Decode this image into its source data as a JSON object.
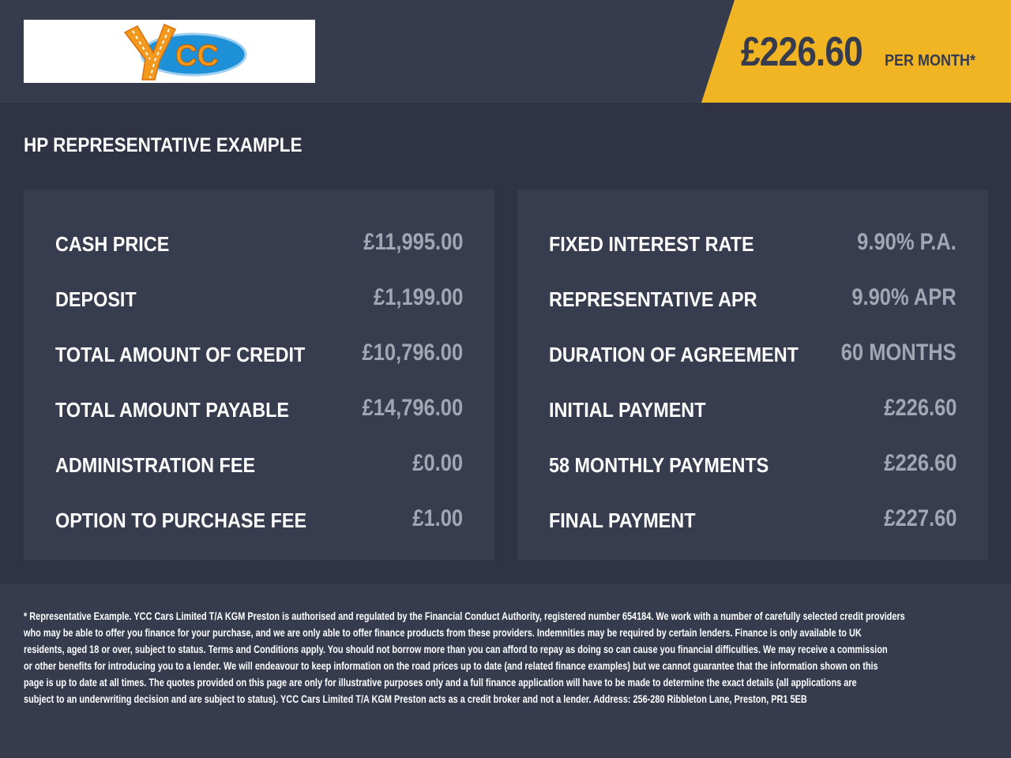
{
  "header": {
    "logo_text": "YCC",
    "monthly_price": "£226.60",
    "per_month_label": "PER MONTH*",
    "accent_color": "#f1b422"
  },
  "section_title": "HP REPRESENTATIVE EXAMPLE",
  "left_panel": [
    {
      "label": "CASH PRICE",
      "value": "£11,995.00"
    },
    {
      "label": "DEPOSIT",
      "value": "£1,199.00"
    },
    {
      "label": "TOTAL AMOUNT OF CREDIT",
      "value": "£10,796.00"
    },
    {
      "label": "TOTAL AMOUNT PAYABLE",
      "value": "£14,796.00"
    },
    {
      "label": "ADMINISTRATION FEE",
      "value": "£0.00"
    },
    {
      "label": "OPTION TO PURCHASE FEE",
      "value": "£1.00"
    }
  ],
  "right_panel": [
    {
      "label": "FIXED INTEREST RATE",
      "value": "9.90% P.A."
    },
    {
      "label": "REPRESENTATIVE APR",
      "value": "9.90% APR"
    },
    {
      "label": "DURATION OF AGREEMENT",
      "value": "60 MONTHS"
    },
    {
      "label": "INITIAL PAYMENT",
      "value": "£226.60"
    },
    {
      "label": "58 MONTHLY PAYMENTS",
      "value": "£226.60"
    },
    {
      "label": "FINAL PAYMENT",
      "value": "£227.60"
    }
  ],
  "disclaimer_lines": [
    "* Representative Example. YCC Cars Limited T/A KGM Preston  is authorised and regulated by the Financial Conduct Authority, registered number 654184. We work with a number of carefully selected credit providers",
    "who may be able to offer you finance for your purchase, and we are only able to offer finance products from these providers. Indemnities may be required by certain lenders. Finance is only available to UK",
    "residents, aged 18 or over, subject to status. Terms and Conditions apply. You should not borrow more than you can afford to repay as doing so can cause you financial difficulties. We may receive a commission",
    "or other benefits for introducing you to a lender. We will endeavour to keep information on the road prices up to date (and related finance examples) but we cannot guarantee that the information shown on this",
    "page is up to date at all times. The quotes provided on this page are only for illustrative purposes only and a full finance application will have to be made to determine the exact details (all applications are",
    "subject to an underwriting decision and are subject to status). YCC Cars Limited T/A KGM Preston  acts as a credit broker and not a lender. Address: 256-280 Ribbleton Lane, Preston, PR1 5EB"
  ]
}
